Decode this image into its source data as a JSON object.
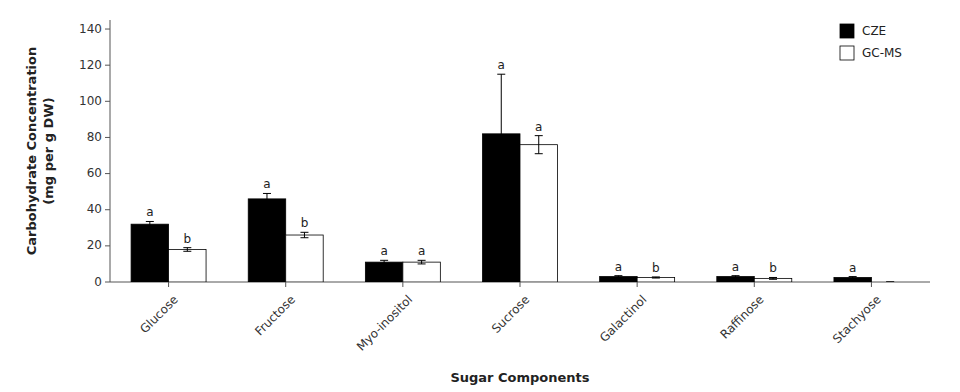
{
  "chart_data": {
    "type": "bar",
    "xlabel": "Sugar Components",
    "ylabel": [
      "Carbohydrate Concentration",
      "(mg per g DW)"
    ],
    "categories": [
      "Glucose",
      "Fructose",
      "Myo-inositol",
      "Sucrose",
      "Galactinol",
      "Raffinose",
      "Stachyose"
    ],
    "series": [
      {
        "name": "CZE",
        "color": "#000000",
        "values": [
          32,
          46,
          11,
          82,
          3,
          3,
          2.5
        ],
        "errors": [
          1.5,
          3,
          1,
          33,
          0.5,
          0.5,
          0.5
        ],
        "letters": [
          "a",
          "a",
          "a",
          "a",
          "a",
          "a",
          "a"
        ]
      },
      {
        "name": "GC-MS",
        "color": "#ffffff",
        "values": [
          18,
          26,
          11,
          76,
          2.5,
          2,
          0
        ],
        "errors": [
          1,
          1.5,
          1,
          5,
          0.3,
          0.5,
          0
        ],
        "letters": [
          "b",
          "b",
          "a",
          "a",
          "b",
          "b",
          null
        ]
      }
    ],
    "ylim": [
      0,
      145
    ],
    "yticks": [
      0,
      20,
      40,
      60,
      80,
      100,
      120,
      140
    ],
    "grid": false,
    "legend": "upper right"
  }
}
